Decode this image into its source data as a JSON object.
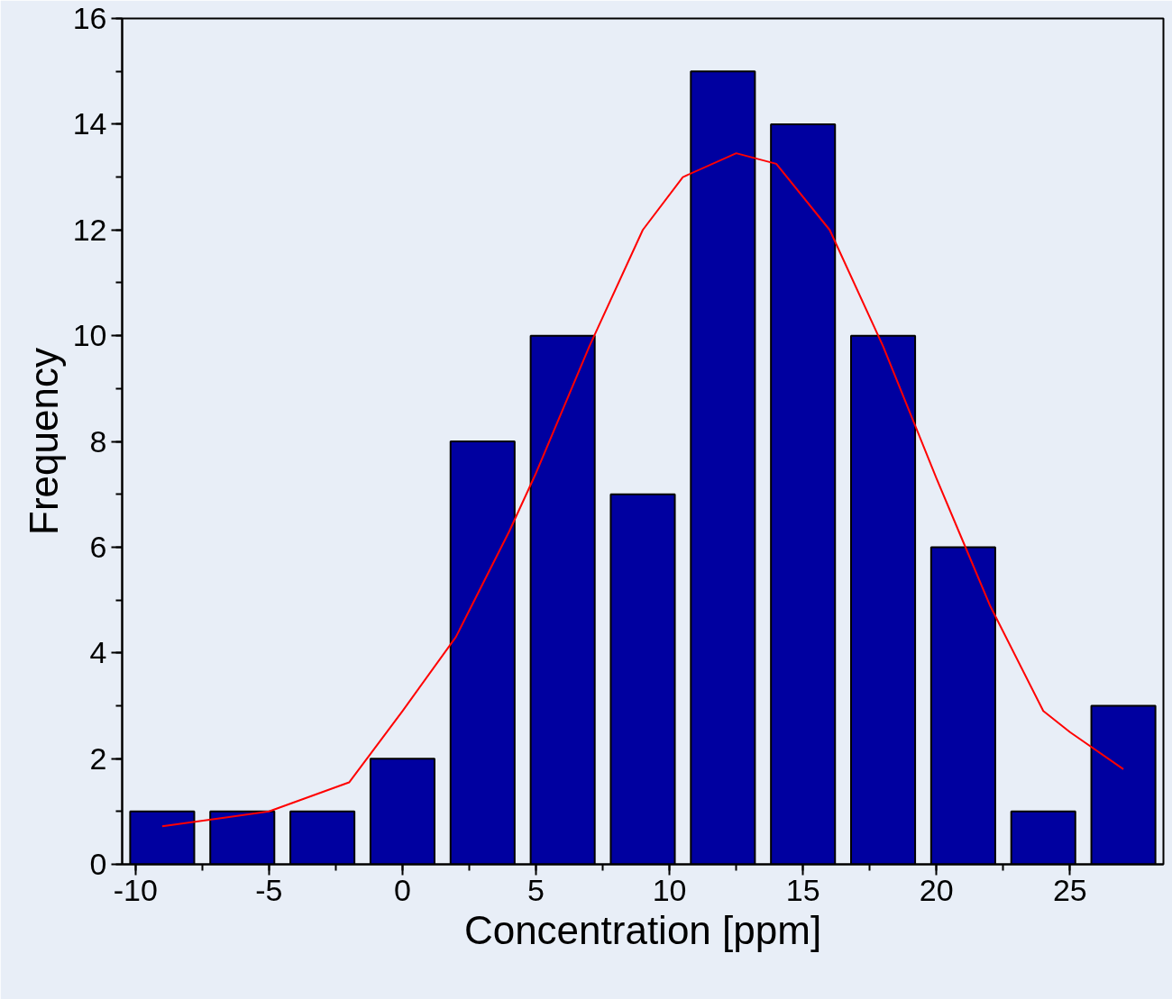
{
  "chart_data": {
    "type": "histogram",
    "xlabel": "Concentration [ppm]",
    "ylabel": "Frequency",
    "bins": [
      -10.5,
      -7.5,
      -4.5,
      -1.5,
      1.5,
      4.5,
      7.5,
      10.5,
      13.5,
      16.5,
      19.5,
      22.5,
      25.5,
      28.5
    ],
    "values": [
      1,
      1,
      1,
      2,
      8,
      10,
      7,
      15,
      14,
      10,
      6,
      1,
      3
    ],
    "color": "#0000a0",
    "series": [
      {
        "type": "line",
        "color": "#ff0000",
        "x": [
          -9,
          -5,
          -2,
          0,
          2,
          4,
          5,
          7,
          9,
          10.5,
          12.5,
          14,
          16,
          18,
          20,
          21,
          22,
          24,
          25,
          27
        ],
        "values": [
          0.72,
          1.0,
          1.55,
          2.9,
          4.3,
          6.3,
          7.4,
          9.8,
          12.0,
          13.0,
          13.45,
          13.25,
          12.0,
          9.8,
          7.3,
          6.1,
          4.9,
          2.9,
          2.5,
          1.8
        ]
      }
    ],
    "xlim": [
      -10.5,
      28.5
    ],
    "ylim": [
      0,
      16
    ],
    "xticks": [
      -10,
      -5,
      0,
      5,
      10,
      15,
      20,
      25
    ],
    "yticks": [
      0,
      2,
      4,
      6,
      8,
      10,
      12,
      14,
      16
    ],
    "grid": false
  }
}
